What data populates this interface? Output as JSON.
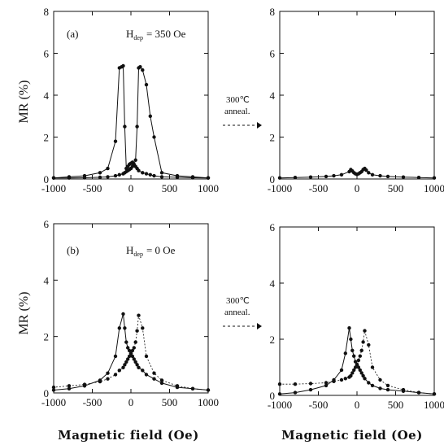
{
  "figure": {
    "ylabel": "MR (%)",
    "xlabel": "Magnetic field (Oe)",
    "anneal_label_1": "300℃",
    "anneal_label_2": "anneal.",
    "hdep_a": "H",
    "hdep_a_sub": "dep",
    "hdep_a_value": "= 350 Oe",
    "hdep_b": "H",
    "hdep_b_sub": "dep",
    "hdep_b_value": "= 0 Oe",
    "tag_a": "(a)",
    "tag_b": "(b)"
  },
  "chart_data": [
    {
      "id": "a-before",
      "type": "line",
      "xlim": [
        -1000,
        1000
      ],
      "ylim": [
        0,
        8
      ],
      "xticks": [
        -1000,
        -500,
        0,
        500,
        1000
      ],
      "yticks": [
        0,
        2,
        4,
        6,
        8
      ],
      "series": [
        {
          "style": "solid",
          "x": [
            -1000,
            -800,
            -600,
            -400,
            -300,
            -200,
            -150,
            -120,
            -100,
            -80,
            -60,
            -40,
            -20,
            0,
            20,
            40,
            60,
            80,
            100,
            150,
            200,
            250,
            300,
            400,
            600,
            800,
            1000
          ],
          "y": [
            0.05,
            0.1,
            0.15,
            0.3,
            0.5,
            1.8,
            5.3,
            5.35,
            5.4,
            2.5,
            0.5,
            0.6,
            0.7,
            0.75,
            0.8,
            0.7,
            0.6,
            0.5,
            0.4,
            0.3,
            0.25,
            0.2,
            0.15,
            0.1,
            0.08,
            0.06,
            0.05
          ]
        },
        {
          "style": "solid",
          "x": [
            1000,
            800,
            600,
            400,
            300,
            250,
            200,
            150,
            120,
            100,
            80,
            60,
            40,
            20,
            0,
            -20,
            -40,
            -60,
            -80,
            -100,
            -150,
            -200,
            -300,
            -400,
            -600,
            -800,
            -1000
          ],
          "y": [
            0.05,
            0.1,
            0.15,
            0.3,
            2.0,
            3.0,
            4.5,
            5.2,
            5.35,
            5.3,
            2.5,
            0.9,
            0.7,
            0.6,
            0.5,
            0.45,
            0.4,
            0.35,
            0.3,
            0.25,
            0.2,
            0.15,
            0.1,
            0.08,
            0.06,
            0.05,
            0.05
          ]
        }
      ]
    },
    {
      "id": "a-after",
      "type": "line",
      "xlim": [
        -1000,
        1000
      ],
      "ylim": [
        0,
        8
      ],
      "xticks": [
        -1000,
        -500,
        0,
        500,
        1000
      ],
      "yticks": [
        0,
        2,
        4,
        6,
        8
      ],
      "series": [
        {
          "style": "solid",
          "x": [
            -1000,
            -800,
            -600,
            -400,
            -300,
            -200,
            -100,
            -80,
            -60,
            -40,
            -20,
            0,
            20,
            40,
            60,
            80,
            100,
            120,
            150,
            200,
            300,
            400,
            600,
            800,
            1000
          ],
          "y": [
            0.05,
            0.07,
            0.09,
            0.12,
            0.15,
            0.2,
            0.35,
            0.45,
            0.38,
            0.3,
            0.25,
            0.22,
            0.25,
            0.3,
            0.35,
            0.45,
            0.5,
            0.42,
            0.3,
            0.2,
            0.15,
            0.12,
            0.09,
            0.07,
            0.05
          ]
        }
      ]
    },
    {
      "id": "b-before",
      "type": "line",
      "xlim": [
        -1000,
        1000
      ],
      "ylim": [
        0,
        6
      ],
      "xticks": [
        -1000,
        -500,
        0,
        500,
        1000
      ],
      "yticks": [
        0,
        2,
        4,
        6
      ],
      "series": [
        {
          "style": "solid",
          "x": [
            -1000,
            -800,
            -600,
            -400,
            -300,
            -200,
            -150,
            -100,
            -80,
            -60,
            -40,
            -20,
            0,
            20,
            40,
            60,
            80,
            100,
            150,
            200,
            300,
            400,
            600,
            800,
            1000
          ],
          "y": [
            0.1,
            0.15,
            0.25,
            0.45,
            0.7,
            1.3,
            2.3,
            2.8,
            2.3,
            1.8,
            1.6,
            1.5,
            1.4,
            1.3,
            1.2,
            1.1,
            1.0,
            0.9,
            0.8,
            0.65,
            0.5,
            0.35,
            0.2,
            0.15,
            0.1
          ]
        },
        {
          "style": "dashed",
          "x": [
            1000,
            800,
            600,
            400,
            300,
            200,
            150,
            100,
            80,
            60,
            40,
            20,
            0,
            -20,
            -40,
            -60,
            -80,
            -100,
            -150,
            -200,
            -300,
            -400,
            -600,
            -800,
            -1000
          ],
          "y": [
            0.1,
            0.15,
            0.25,
            0.45,
            0.7,
            1.3,
            2.3,
            2.75,
            2.2,
            1.8,
            1.6,
            1.5,
            1.4,
            1.3,
            1.2,
            1.1,
            1.0,
            0.9,
            0.8,
            0.65,
            0.5,
            0.4,
            0.3,
            0.25,
            0.2
          ]
        }
      ]
    },
    {
      "id": "b-after",
      "type": "line",
      "xlim": [
        -1000,
        1000
      ],
      "ylim": [
        0,
        6
      ],
      "xticks": [
        -1000,
        -500,
        0,
        500,
        1000
      ],
      "yticks": [
        0,
        2,
        4,
        6
      ],
      "series": [
        {
          "style": "solid",
          "x": [
            -1000,
            -800,
            -600,
            -400,
            -300,
            -200,
            -150,
            -100,
            -80,
            -60,
            -40,
            -20,
            0,
            20,
            40,
            60,
            80,
            100,
            150,
            200,
            300,
            400,
            600,
            800,
            1000
          ],
          "y": [
            0.05,
            0.1,
            0.2,
            0.35,
            0.55,
            0.9,
            1.5,
            2.4,
            2.0,
            1.6,
            1.4,
            1.2,
            1.1,
            1.0,
            0.9,
            0.8,
            0.7,
            0.6,
            0.45,
            0.35,
            0.25,
            0.2,
            0.15,
            0.1,
            0.05
          ]
        },
        {
          "style": "dashed",
          "x": [
            1000,
            800,
            600,
            400,
            300,
            200,
            150,
            100,
            80,
            60,
            40,
            20,
            0,
            -20,
            -40,
            -60,
            -80,
            -100,
            -150,
            -200,
            -300,
            -400,
            -600,
            -800,
            -1000
          ],
          "y": [
            0.05,
            0.1,
            0.2,
            0.35,
            0.55,
            1.0,
            1.8,
            2.3,
            1.9,
            1.6,
            1.4,
            1.25,
            1.1,
            1.0,
            0.9,
            0.8,
            0.7,
            0.65,
            0.6,
            0.55,
            0.5,
            0.45,
            0.42,
            0.4,
            0.4
          ]
        }
      ]
    }
  ]
}
